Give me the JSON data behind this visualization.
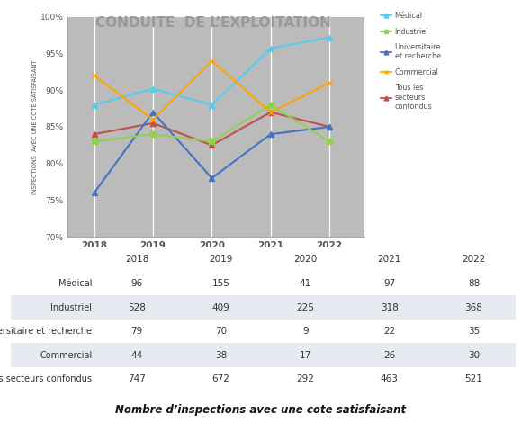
{
  "title": "CONDUITE  DE L’EXPLOITATION",
  "years": [
    2018,
    2019,
    2020,
    2021,
    2022
  ],
  "series": {
    "Médical": {
      "values": [
        88.0,
        90.2,
        88.0,
        95.7,
        97.2
      ],
      "color": "#55CCEE",
      "marker": "^",
      "linestyle": "-",
      "zorder": 5
    },
    "Industriel": {
      "values": [
        83.0,
        84.0,
        83.0,
        88.0,
        83.0
      ],
      "color": "#92D050",
      "marker": "s",
      "linestyle": "-",
      "zorder": 4
    },
    "Universitaire\net recherche": {
      "values": [
        76.0,
        87.0,
        78.0,
        84.0,
        85.0
      ],
      "color": "#4472C4",
      "marker": "^",
      "linestyle": "-",
      "zorder": 3
    },
    "Commercial": {
      "values": [
        92.0,
        86.0,
        94.0,
        87.0,
        91.0
      ],
      "color": "#FFA500",
      "marker": "x",
      "linestyle": "-",
      "zorder": 6
    },
    "Tous les\nsecteurs\nconfondus": {
      "values": [
        84.0,
        85.5,
        82.5,
        87.0,
        85.0
      ],
      "color": "#C0504D",
      "marker": "^",
      "linestyle": "-",
      "zorder": 2
    }
  },
  "ylabel": "INSPECTIONS  AVEC UNE COTE SATISFAISANT",
  "ylim": [
    70,
    100
  ],
  "yticks": [
    70,
    75,
    80,
    85,
    90,
    95,
    100
  ],
  "ytick_labels": [
    "70%",
    "75%",
    "80%",
    "85%",
    "90%",
    "95%",
    "100%"
  ],
  "chart_bg": "#BBBBBB",
  "table_bg": "#FFFFFF",
  "table_rows": {
    "Médical": [
      96,
      155,
      41,
      97,
      88
    ],
    "Industriel": [
      528,
      409,
      225,
      318,
      368
    ],
    "Universitaire et recherche": [
      79,
      70,
      9,
      22,
      35
    ],
    "Commercial": [
      44,
      38,
      17,
      26,
      30
    ],
    "Tous les secteurs confondus": [
      747,
      672,
      292,
      463,
      521
    ]
  },
  "table_years": [
    "2018",
    "2019",
    "2020",
    "2021",
    "2022"
  ],
  "table_caption": "Nombre d’inspections avec une cote satisfaisant",
  "legend_order": [
    "Médical",
    "Industriel",
    "Universitaire\net recherche",
    "Commercial",
    "Tous les\nsecteurs\nconfondus"
  ]
}
